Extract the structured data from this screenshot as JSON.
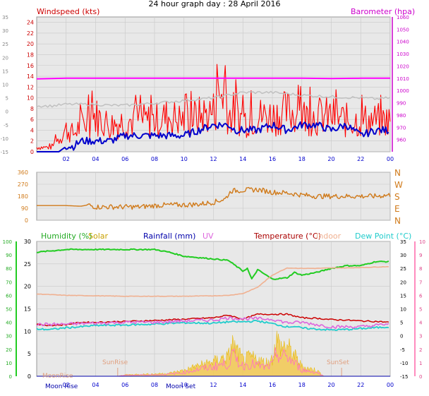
{
  "title": "24 hour graph day : 28 April 2016",
  "colors": {
    "wind_avg": "#0000cc",
    "wind_gust": "#ff0000",
    "baro": "#ff00ff",
    "temp_ghost": "#c0c0c0",
    "direction": "#d07a1a",
    "humidity": "#22cc22",
    "solar": "#e6b800",
    "rain": "#0000aa",
    "uv": "#dd66dd",
    "temperature": "#cc0000",
    "indoor": "#f0b090",
    "dewpoint": "#22cccc",
    "panel_bg": "#e8e8e8",
    "grid": "#c8c8c8"
  },
  "labels": {
    "windspeed": "Windspeed (kts)",
    "barometer": "Barometer (hpa)",
    "humidity": "Humidity (%)",
    "solar": "Solar",
    "rainfall": "Rainfall (mm)",
    "uv": "UV",
    "temperature": "Temperature (°C)",
    "indoor": "Indoor",
    "dewpoint": "Dew Point (°C)",
    "sunrise": "SunRise",
    "sunset": "SunSet",
    "moonrise": "Moon Rise",
    "moonset": "Moon Set",
    "moonrise_ghost": "MoonRise"
  },
  "chart_data": [
    {
      "type": "line",
      "title": "24 hour graph day : 28 April 2016",
      "x_ticks": [
        "02",
        "04",
        "06",
        "08",
        "10",
        "12",
        "14",
        "16",
        "18",
        "20",
        "22",
        "00"
      ],
      "y_left": {
        "label": "Windspeed (kts)",
        "ticks": [
          0,
          2,
          4,
          6,
          8,
          10,
          12,
          14,
          16,
          18,
          20,
          22,
          24
        ],
        "ylim": [
          0,
          25
        ]
      },
      "y_left_outer_ticks": [
        -15,
        -10,
        -5,
        0,
        5,
        10,
        15,
        20,
        25,
        30,
        35
      ],
      "y_right": {
        "label": "Barometer (hpa)",
        "ticks": [
          980,
          990,
          1000,
          1010,
          1020,
          1030,
          1040,
          1050,
          1060
        ],
        "right_extra_ticks": [
          960,
          970
        ],
        "ylim": [
          950,
          1060
        ]
      },
      "series": [
        {
          "name": "Windspeed (kts)",
          "key": "wind_gust",
          "x": [
            0,
            1,
            1.5,
            2,
            2.5,
            3,
            4,
            5,
            6,
            7,
            8,
            9,
            10,
            11,
            12,
            12.8,
            13,
            13.5,
            14,
            15,
            16,
            17,
            18,
            19,
            20,
            21,
            22,
            23,
            24
          ],
          "y": [
            1,
            1,
            3,
            5,
            4,
            6,
            8,
            6,
            7,
            7,
            7,
            8,
            7,
            8,
            9,
            15,
            8,
            9,
            7,
            8,
            8,
            9,
            8,
            8,
            8,
            7,
            7,
            7,
            7
          ]
        },
        {
          "name": "avg",
          "key": "wind_avg",
          "x": [
            0,
            1,
            1.5,
            2,
            2.5,
            3,
            3.5,
            4,
            5,
            6,
            7,
            8,
            9,
            10,
            11,
            12,
            12.5,
            13,
            13.5,
            14,
            15,
            16,
            17,
            18,
            19,
            20,
            21,
            22,
            23,
            24
          ],
          "y": [
            0,
            0,
            0,
            1,
            1,
            2,
            2,
            2,
            2,
            3,
            3,
            3,
            3,
            3,
            4,
            5,
            5,
            5,
            4,
            4,
            4,
            5,
            4,
            5,
            5,
            4,
            5,
            3,
            4,
            4
          ]
        },
        {
          "name": "Barometer (hpa)",
          "key": "baro",
          "x": [
            0,
            2,
            4,
            6,
            8,
            10,
            12,
            14,
            16,
            18,
            20,
            22,
            24
          ],
          "y": [
            1009.5,
            1010,
            1010,
            1010,
            1010,
            1010,
            1010,
            1010,
            1010,
            1010,
            1009.8,
            1010,
            1010
          ]
        },
        {
          "name": "temp_ghost",
          "key": "temp_ghost",
          "x": [
            0,
            1,
            2,
            3,
            4,
            5,
            6,
            8,
            10,
            12,
            13,
            14,
            16,
            18,
            20,
            22,
            23,
            24
          ],
          "y": [
            8.5,
            8.5,
            8.8,
            8.8,
            8.8,
            8.6,
            8.6,
            9,
            9.5,
            10,
            10.5,
            11,
            11,
            10.5,
            10.2,
            10,
            9.8,
            10
          ]
        }
      ]
    },
    {
      "type": "line",
      "y_ticks": [
        0,
        90,
        180,
        270,
        360
      ],
      "y_right_labels": [
        "N",
        "E",
        "S",
        "W",
        "N"
      ],
      "ylim": [
        0,
        360
      ],
      "series": [
        {
          "name": "direction",
          "key": "direction",
          "x": [
            0,
            1,
            2,
            3,
            3.5,
            4,
            5,
            6,
            7,
            8,
            9,
            10,
            11,
            12,
            12.8,
            13.2,
            14,
            15,
            16,
            17,
            18,
            19,
            20,
            21,
            22,
            23,
            24
          ],
          "y": [
            110,
            110,
            110,
            105,
            115,
            100,
            100,
            100,
            100,
            110,
            115,
            115,
            120,
            135,
            160,
            220,
            225,
            230,
            210,
            205,
            190,
            180,
            180,
            180,
            180,
            180,
            190
          ]
        }
      ]
    },
    {
      "type": "line",
      "y_left_humidity": {
        "ticks": [
          0,
          10,
          20,
          30,
          40,
          50,
          60,
          70,
          80,
          90,
          100
        ],
        "ylim": [
          0,
          100
        ]
      },
      "y_left_temp": {
        "ticks": [
          0,
          5,
          10,
          15,
          20,
          25,
          30
        ],
        "ylim": [
          0,
          30
        ]
      },
      "y_right_temp": {
        "ticks": [
          -15,
          -10,
          -5,
          0,
          5,
          10,
          15,
          20,
          25,
          30,
          35
        ],
        "ylim": [
          -15,
          35
        ]
      },
      "y_right_uv": {
        "ticks": [
          0,
          1,
          2,
          3,
          4,
          5,
          6,
          7,
          8,
          9,
          10
        ],
        "ylim": [
          0,
          10
        ]
      },
      "series": [
        {
          "name": "Humidity (%)",
          "key": "humidity",
          "x": [
            0,
            1,
            2,
            4,
            6,
            8,
            9,
            10,
            11,
            12,
            13,
            13.5,
            14,
            14.3,
            14.6,
            15,
            16,
            17,
            17.5,
            18,
            19,
            20,
            21,
            22,
            23,
            24
          ],
          "y": [
            92,
            93,
            94,
            94,
            94,
            94,
            92,
            89,
            88,
            87,
            86,
            82,
            78,
            80,
            72,
            79,
            72,
            73,
            77,
            75,
            77,
            80,
            82,
            82,
            85,
            85
          ]
        },
        {
          "name": "Indoor",
          "key": "indoor",
          "x": [
            0,
            2,
            4,
            6,
            8,
            10,
            12,
            13,
            14,
            15,
            16,
            17,
            18,
            19,
            20,
            21,
            22,
            23,
            24
          ],
          "y": [
            18.3,
            18,
            17.9,
            17.8,
            17.8,
            17.8,
            17.9,
            18,
            18.4,
            19.8,
            22.5,
            24.1,
            24,
            24,
            24.1,
            24.1,
            24.2,
            24.3,
            24.4
          ]
        },
        {
          "name": "Temperature (°C)",
          "key": "temperature",
          "x": [
            0,
            1,
            2,
            3,
            4,
            6,
            8,
            10,
            12,
            13,
            14,
            15,
            16,
            17,
            18,
            19,
            20,
            21,
            22,
            23,
            24
          ],
          "y": [
            11.5,
            11.3,
            11.5,
            12,
            12,
            12.2,
            12.4,
            12.7,
            13,
            13.6,
            12.7,
            13.8,
            13.8,
            13.8,
            13,
            12.9,
            12.6,
            12.5,
            12.3,
            12.2,
            12
          ]
        },
        {
          "name": "Dew Point (°C)",
          "key": "dewpoint",
          "x": [
            0,
            1,
            2,
            3,
            4,
            6,
            8,
            10,
            12,
            13,
            14,
            15,
            16,
            17,
            17.5,
            18,
            19,
            20,
            21,
            22,
            23,
            24
          ],
          "y": [
            10.5,
            10.4,
            10.8,
            11,
            11.3,
            11.4,
            11.6,
            11.9,
            11.8,
            12.1,
            12.1,
            12.3,
            11.7,
            11,
            11.1,
            10.7,
            10.5,
            10.3,
            10.4,
            10.6,
            10.8,
            11
          ]
        },
        {
          "name": "UV",
          "key": "uv",
          "x": [
            0,
            2,
            4,
            6,
            8,
            10,
            12,
            13,
            14,
            15,
            16,
            17,
            18,
            19,
            20,
            21,
            22,
            23,
            24
          ],
          "y": [
            11.5,
            11.6,
            11.8,
            12,
            12,
            12.3,
            12.5,
            13,
            12.8,
            12.8,
            12.7,
            11.9,
            12,
            11.5,
            11,
            11,
            11,
            11.3,
            11.7
          ]
        },
        {
          "name": "Solar",
          "key": "solar",
          "x": [
            5.5,
            6,
            8,
            9,
            10,
            10.5,
            11,
            11.5,
            12,
            12.5,
            13,
            13.3,
            13.6,
            14,
            14.5,
            15,
            15.5,
            16,
            16.3,
            16.6,
            17,
            17.3,
            17.6,
            18,
            18.5,
            19,
            19.5
          ],
          "y": [
            0,
            0.4,
            0.6,
            0.8,
            1.5,
            2.2,
            2.8,
            3.3,
            3.8,
            4.6,
            5,
            8.3,
            6.5,
            4.2,
            5,
            4.4,
            3.5,
            4.5,
            9.5,
            7.5,
            8,
            6.2,
            4.8,
            2.6,
            2,
            1.6,
            0
          ]
        },
        {
          "name": "Rainfall (mm)",
          "key": "rain",
          "x": [
            0,
            24
          ],
          "y": [
            0,
            0
          ]
        }
      ]
    }
  ]
}
